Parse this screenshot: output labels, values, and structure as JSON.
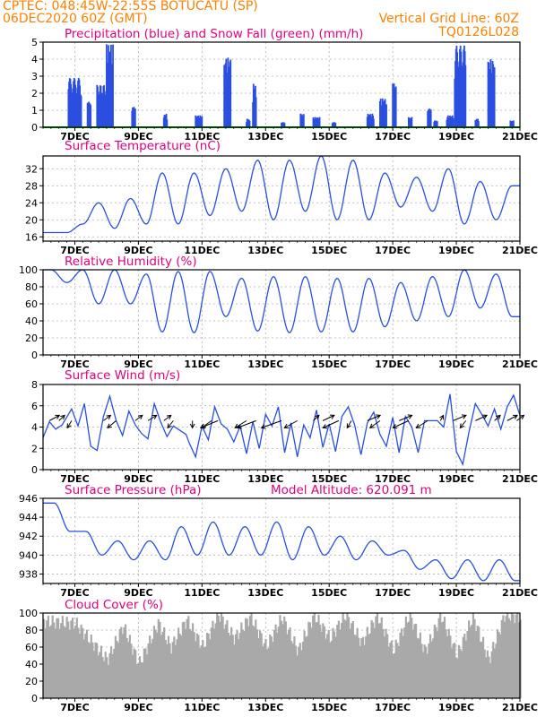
{
  "header": {
    "line1_left": "CPTEC:   048:45W-22:55S   BOTUCATU (SP)",
    "line2_left": "06DEC2020 60Z (GMT)",
    "line2_right": "Vertical Grid Line: 60Z",
    "line3_right": "TQ0126L028"
  },
  "colors": {
    "header": "#ff8000",
    "panel_title": "#e0007f",
    "line": "#2a4fe0",
    "precip_bar": "#2a4fe0",
    "snow_line": "#00aa00",
    "cloud_bar": "#a9a9a9",
    "grid": "#b0b0b0"
  },
  "x_axis": {
    "range_days": [
      6.0,
      21.0
    ],
    "tick_days": [
      7,
      9,
      11,
      13,
      15,
      17,
      19,
      21
    ],
    "tick_labels": [
      "7DEC",
      "9DEC",
      "11DEC",
      "13DEC",
      "15DEC",
      "17DEC",
      "19DEC",
      "21DEC"
    ]
  },
  "chart_data": [
    {
      "id": "precip",
      "type": "bar",
      "title": "Precipitation (blue) and Snow Fall (green) (mm/h)",
      "ylim": [
        0,
        5
      ],
      "y_ticks": [
        0,
        1,
        2,
        3,
        4,
        5
      ],
      "grid": true,
      "snow_value": 0,
      "events": [
        [
          6.8,
          7.2,
          2.9
        ],
        [
          7.4,
          7.5,
          1.5
        ],
        [
          7.7,
          8.0,
          2.5
        ],
        [
          8.0,
          8.2,
          4.9
        ],
        [
          8.8,
          8.9,
          1.2
        ],
        [
          9.8,
          9.9,
          0.8
        ],
        [
          10.8,
          11.0,
          0.7
        ],
        [
          11.7,
          11.9,
          4.1
        ],
        [
          12.4,
          12.5,
          0.5
        ],
        [
          12.6,
          12.7,
          2.6
        ],
        [
          13.5,
          13.6,
          0.3
        ],
        [
          14.1,
          14.2,
          0.8
        ],
        [
          14.5,
          14.7,
          0.6
        ],
        [
          15.1,
          15.2,
          0.3
        ],
        [
          16.2,
          16.4,
          0.8
        ],
        [
          16.6,
          16.8,
          1.7
        ],
        [
          17.0,
          17.1,
          2.6
        ],
        [
          17.5,
          17.6,
          0.6
        ],
        [
          18.1,
          18.2,
          1.1
        ],
        [
          18.3,
          18.4,
          0.4
        ],
        [
          18.7,
          18.9,
          0.7
        ],
        [
          18.95,
          19.3,
          4.8
        ],
        [
          19.6,
          19.7,
          0.5
        ],
        [
          20.0,
          20.2,
          4.0
        ],
        [
          20.7,
          20.8,
          0.4
        ]
      ]
    },
    {
      "id": "temp",
      "type": "line",
      "title": "Surface Temperature (nC)",
      "ylim": [
        15,
        35
      ],
      "y_ticks": [
        16,
        20,
        24,
        28,
        32
      ],
      "grid": true,
      "daily_minmax": [
        [
          6.5,
          17,
          17
        ],
        [
          7.5,
          19,
          24
        ],
        [
          8.5,
          18,
          25
        ],
        [
          9.5,
          19,
          31
        ],
        [
          10.5,
          19,
          31
        ],
        [
          11.5,
          21,
          32
        ],
        [
          12.5,
          22,
          34
        ],
        [
          13.5,
          20,
          34
        ],
        [
          14.5,
          22,
          35
        ],
        [
          15.5,
          20,
          34
        ],
        [
          16.5,
          20,
          31
        ],
        [
          17.5,
          23,
          30
        ],
        [
          18.5,
          22,
          32
        ],
        [
          19.5,
          19,
          29
        ],
        [
          20.5,
          20,
          28
        ]
      ]
    },
    {
      "id": "rh",
      "type": "line",
      "title": "Relative Humidity (%)",
      "ylim": [
        0,
        100
      ],
      "y_ticks": [
        0,
        20,
        40,
        60,
        80,
        100
      ],
      "grid": true,
      "daily_minmax": [
        [
          6.5,
          85,
          100
        ],
        [
          7.5,
          60,
          100
        ],
        [
          8.5,
          60,
          100
        ],
        [
          9.5,
          27,
          95
        ],
        [
          10.5,
          26,
          98
        ],
        [
          11.5,
          45,
          98
        ],
        [
          12.5,
          28,
          90
        ],
        [
          13.5,
          26,
          92
        ],
        [
          14.5,
          27,
          92
        ],
        [
          15.5,
          27,
          90
        ],
        [
          16.5,
          33,
          90
        ],
        [
          17.5,
          40,
          85
        ],
        [
          18.5,
          45,
          92
        ],
        [
          19.5,
          55,
          100
        ],
        [
          20.5,
          45,
          95
        ]
      ]
    },
    {
      "id": "wind",
      "type": "line",
      "title": "Surface Wind (m/s)",
      "ylim": [
        0,
        8
      ],
      "y_ticks": [
        0,
        2,
        4,
        6,
        8
      ],
      "grid": true,
      "points": [
        [
          6.0,
          3.0
        ],
        [
          6.2,
          4.5
        ],
        [
          6.4,
          3.8
        ],
        [
          6.6,
          4.2
        ],
        [
          6.9,
          5.7
        ],
        [
          7.1,
          4.1
        ],
        [
          7.3,
          6.2
        ],
        [
          7.5,
          2.2
        ],
        [
          7.7,
          1.8
        ],
        [
          7.9,
          5.0
        ],
        [
          8.1,
          6.9
        ],
        [
          8.3,
          4.6
        ],
        [
          8.5,
          3.2
        ],
        [
          8.7,
          5.5
        ],
        [
          8.9,
          4.2
        ],
        [
          9.1,
          3.4
        ],
        [
          9.3,
          2.9
        ],
        [
          9.5,
          6.2
        ],
        [
          9.7,
          4.5
        ],
        [
          9.9,
          3.1
        ],
        [
          10.1,
          4.1
        ],
        [
          10.3,
          3.7
        ],
        [
          10.5,
          3.3
        ],
        [
          10.6,
          2.5
        ],
        [
          10.8,
          1.2
        ],
        [
          11.0,
          4.1
        ],
        [
          11.2,
          2.8
        ],
        [
          11.4,
          5.9
        ],
        [
          11.6,
          4.3
        ],
        [
          11.8,
          3.8
        ],
        [
          12.0,
          2.6
        ],
        [
          12.2,
          4.1
        ],
        [
          12.4,
          1.5
        ],
        [
          12.6,
          4.5
        ],
        [
          12.8,
          2.0
        ],
        [
          13.0,
          5.2
        ],
        [
          13.2,
          4.1
        ],
        [
          13.4,
          5.9
        ],
        [
          13.6,
          1.6
        ],
        [
          13.8,
          4.4
        ],
        [
          14.0,
          1.2
        ],
        [
          14.2,
          4.2
        ],
        [
          14.4,
          3.0
        ],
        [
          14.6,
          5.6
        ],
        [
          14.8,
          2.1
        ],
        [
          15.0,
          4.3
        ],
        [
          15.2,
          1.7
        ],
        [
          15.4,
          5.0
        ],
        [
          15.6,
          5.9
        ],
        [
          15.8,
          4.2
        ],
        [
          16.0,
          1.4
        ],
        [
          16.2,
          4.4
        ],
        [
          16.4,
          5.4
        ],
        [
          16.6,
          3.3
        ],
        [
          16.8,
          2.2
        ],
        [
          17.0,
          4.9
        ],
        [
          17.2,
          1.6
        ],
        [
          17.4,
          5.0
        ],
        [
          17.6,
          4.0
        ],
        [
          17.8,
          1.6
        ],
        [
          18.0,
          4.6
        ],
        [
          18.2,
          4.6
        ],
        [
          18.4,
          4.6
        ],
        [
          18.6,
          4.0
        ],
        [
          18.8,
          7.1
        ],
        [
          19.0,
          1.7
        ],
        [
          19.2,
          0.5
        ],
        [
          19.4,
          3.6
        ],
        [
          19.6,
          6.2
        ],
        [
          19.8,
          5.2
        ],
        [
          20.0,
          4.1
        ],
        [
          20.2,
          5.7
        ],
        [
          20.4,
          3.8
        ],
        [
          20.6,
          5.9
        ],
        [
          20.8,
          7.0
        ],
        [
          21.0,
          5.1
        ]
      ],
      "arrows": [
        [
          6.2,
          4.6,
          0.7
        ],
        [
          6.5,
          4.6,
          0.4
        ],
        [
          6.9,
          4.6,
          -0.3
        ],
        [
          7.9,
          4.6,
          0.5
        ],
        [
          8.3,
          4.6,
          -0.6
        ],
        [
          8.9,
          4.6,
          0.5
        ],
        [
          9.3,
          4.6,
          0.6
        ],
        [
          9.8,
          4.6,
          0.5
        ],
        [
          10.1,
          4.6,
          -0.4
        ],
        [
          10.7,
          4.6,
          0.0
        ],
        [
          11.3,
          4.6,
          -0.7
        ],
        [
          11.5,
          4.6,
          -1.2
        ],
        [
          12.4,
          4.6,
          -0.8
        ],
        [
          12.7,
          4.6,
          -1.3
        ],
        [
          13.5,
          4.6,
          -1.4
        ],
        [
          14.0,
          4.6,
          -0.9
        ],
        [
          14.5,
          4.6,
          0.4
        ],
        [
          14.8,
          4.6,
          0.8
        ],
        [
          15.3,
          4.6,
          -1.1
        ],
        [
          15.7,
          4.6,
          -0.3
        ],
        [
          16.2,
          4.6,
          0.9
        ],
        [
          16.6,
          4.6,
          -0.7
        ],
        [
          17.2,
          4.6,
          0.9
        ],
        [
          17.5,
          4.6,
          -1.1
        ],
        [
          18.1,
          4.6,
          -0.8
        ],
        [
          18.5,
          4.6,
          0.2
        ],
        [
          18.9,
          4.6,
          0.9
        ],
        [
          19.3,
          4.6,
          -0.4
        ],
        [
          19.6,
          4.6,
          0.8
        ],
        [
          20.2,
          4.6,
          0.4
        ],
        [
          20.6,
          4.6,
          0.7
        ],
        [
          20.9,
          4.6,
          0.5
        ]
      ]
    },
    {
      "id": "pres",
      "type": "line",
      "title": "Surface Pressure (hPa)",
      "annotation": "Model Altitude: 620.091 m",
      "ylim": [
        937,
        946
      ],
      "y_ticks": [
        938,
        940,
        942,
        944,
        946
      ],
      "grid": true,
      "daily_minmax": [
        [
          6.5,
          942.5,
          945.5
        ],
        [
          7.5,
          940.0,
          942.5
        ],
        [
          8.5,
          939.5,
          941.5
        ],
        [
          9.5,
          939.5,
          941.5
        ],
        [
          10.5,
          940.0,
          943.0
        ],
        [
          11.5,
          940.0,
          943.5
        ],
        [
          12.5,
          940.0,
          943.0
        ],
        [
          13.5,
          939.5,
          943.5
        ],
        [
          14.5,
          940.0,
          943.0
        ],
        [
          15.5,
          939.5,
          942.0
        ],
        [
          16.5,
          940.0,
          941.5
        ],
        [
          17.5,
          938.5,
          940.5
        ],
        [
          18.5,
          937.5,
          939.5
        ],
        [
          19.5,
          937.3,
          939.5
        ],
        [
          20.5,
          937.3,
          939.5
        ]
      ]
    },
    {
      "id": "cloud",
      "type": "area",
      "title": "Cloud Cover (%)",
      "ylim": [
        0,
        100
      ],
      "y_ticks": [
        0,
        20,
        40,
        60,
        80,
        100
      ],
      "grid": true,
      "daily_level": [
        [
          6.0,
          90
        ],
        [
          7.0,
          88
        ],
        [
          8.0,
          45
        ],
        [
          8.5,
          85
        ],
        [
          9.0,
          40
        ],
        [
          9.6,
          88
        ],
        [
          10.0,
          60
        ],
        [
          10.5,
          92
        ],
        [
          11.0,
          60
        ],
        [
          11.5,
          99
        ],
        [
          12.0,
          70
        ],
        [
          12.5,
          96
        ],
        [
          13.0,
          60
        ],
        [
          13.5,
          95
        ],
        [
          14.0,
          55
        ],
        [
          14.5,
          98
        ],
        [
          15.0,
          70
        ],
        [
          15.5,
          98
        ],
        [
          16.0,
          65
        ],
        [
          16.5,
          97
        ],
        [
          17.0,
          55
        ],
        [
          17.5,
          98
        ],
        [
          18.0,
          55
        ],
        [
          18.5,
          97
        ],
        [
          19.0,
          50
        ],
        [
          19.5,
          96
        ],
        [
          20.0,
          45
        ],
        [
          20.5,
          98
        ],
        [
          21.0,
          95
        ]
      ]
    }
  ]
}
